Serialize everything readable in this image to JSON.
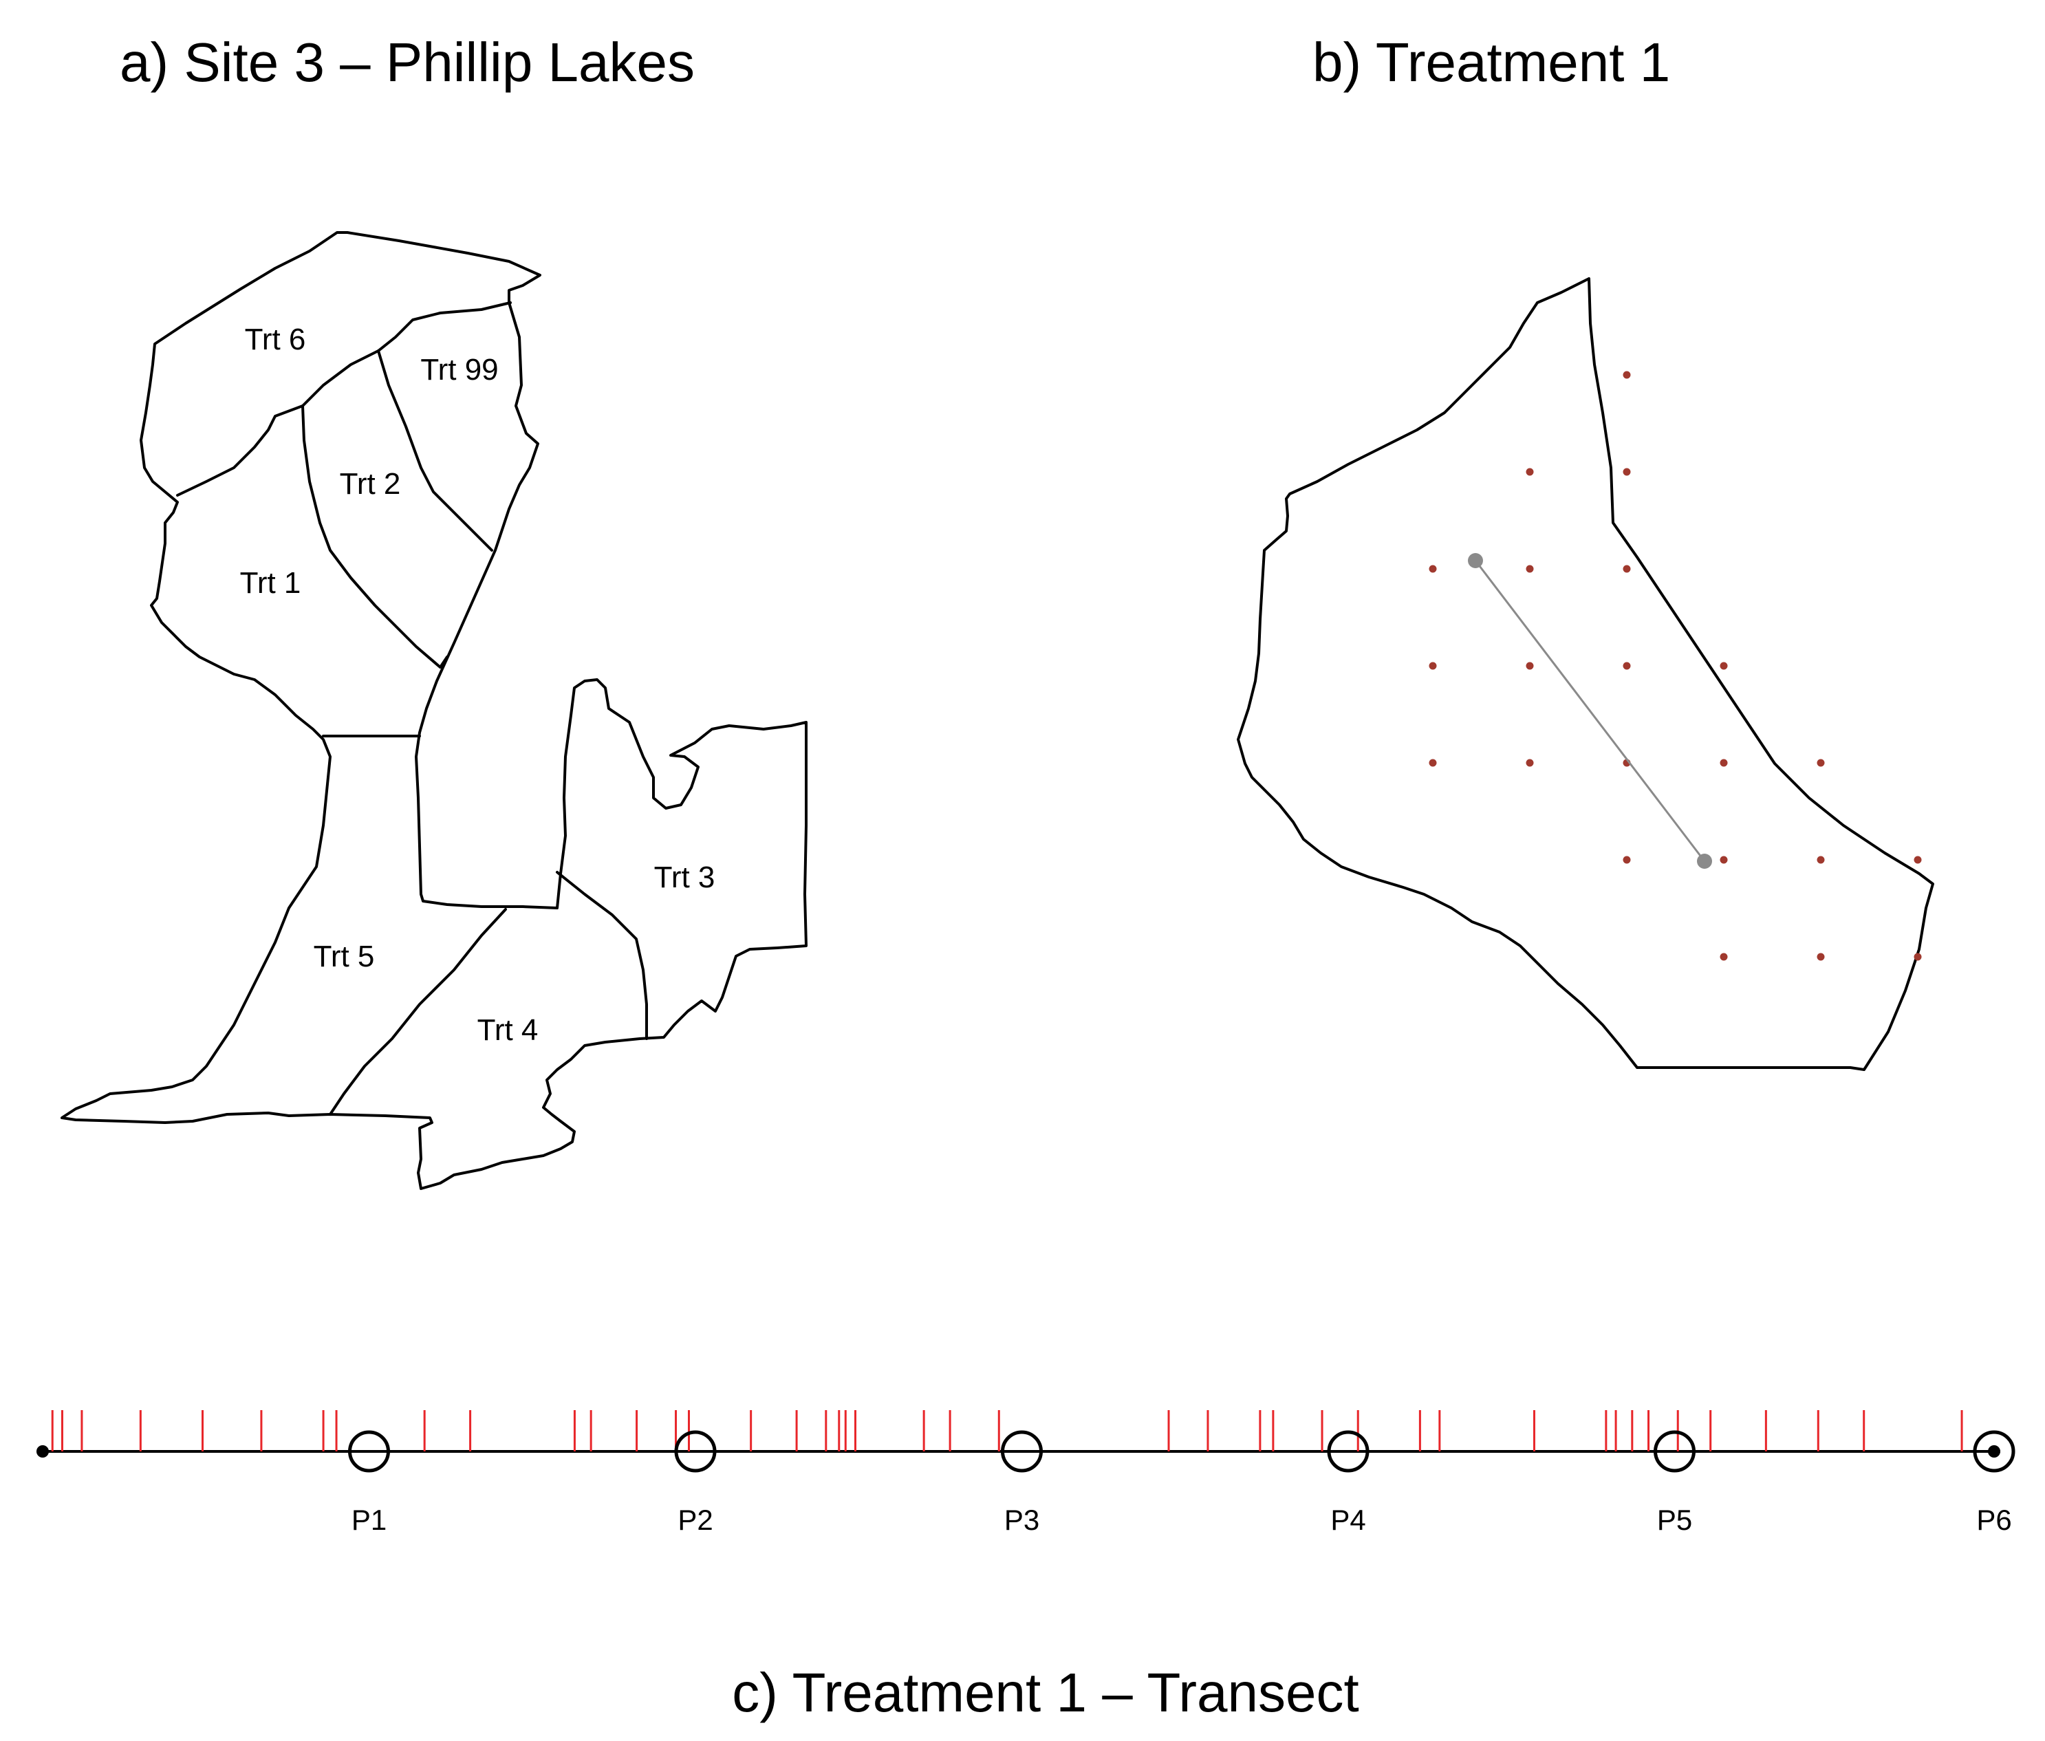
{
  "panel_a": {
    "title": "a)  Site 3 – Phillip Lakes",
    "treatments": [
      "Trt 6",
      "Trt 99",
      "Trt 2",
      "Trt 1",
      "Trt 3",
      "Trt 5",
      "Trt 4"
    ]
  },
  "panel_b": {
    "title": "b)  Treatment 1",
    "dot_color": "#a0392e",
    "transect_color": "#8a8a8a",
    "sample_points": [
      {
        "col": 3,
        "row": 0
      },
      {
        "col": 2,
        "row": 1
      },
      {
        "col": 3,
        "row": 1
      },
      {
        "col": 1,
        "row": 2
      },
      {
        "col": 2,
        "row": 2
      },
      {
        "col": 3,
        "row": 2
      },
      {
        "col": 1,
        "row": 3
      },
      {
        "col": 2,
        "row": 3
      },
      {
        "col": 3,
        "row": 3
      },
      {
        "col": 4,
        "row": 3
      },
      {
        "col": 1,
        "row": 4
      },
      {
        "col": 2,
        "row": 4
      },
      {
        "col": 3,
        "row": 4
      },
      {
        "col": 4,
        "row": 4
      },
      {
        "col": 5,
        "row": 4
      },
      {
        "col": 3,
        "row": 5
      },
      {
        "col": 4,
        "row": 5
      },
      {
        "col": 5,
        "row": 5
      },
      {
        "col": 6,
        "row": 5
      },
      {
        "col": 4,
        "row": 6
      },
      {
        "col": 5,
        "row": 6
      },
      {
        "col": 6,
        "row": 6
      }
    ]
  },
  "panel_c": {
    "title": "c) Treatment 1 – Transect",
    "tick_color": "#e8262a",
    "points": [
      "P1",
      "P2",
      "P3",
      "P4",
      "P5",
      "P6"
    ],
    "point_positions": [
      1,
      2,
      3,
      4,
      5,
      6
    ],
    "tick_positions": [
      0.03,
      0.06,
      0.12,
      0.3,
      0.49,
      0.67,
      0.86,
      0.9,
      1.17,
      1.31,
      1.63,
      1.68,
      1.82,
      1.94,
      1.98,
      2.17,
      2.31,
      2.4,
      2.44,
      2.46,
      2.49,
      2.7,
      2.78,
      2.93,
      3.45,
      3.57,
      3.73,
      3.77,
      3.92,
      4.03,
      4.22,
      4.28,
      4.57,
      4.79,
      4.82,
      4.87,
      4.92,
      5.01,
      5.11,
      5.28,
      5.44,
      5.58,
      5.88
    ]
  }
}
